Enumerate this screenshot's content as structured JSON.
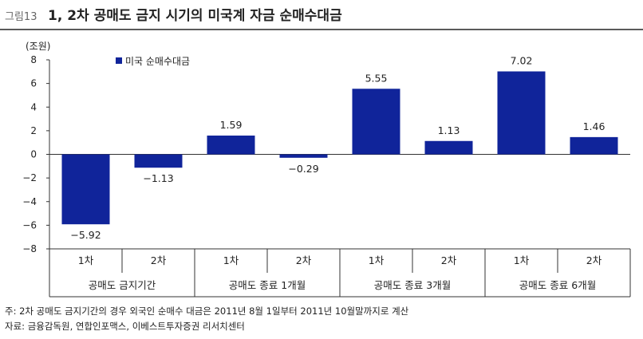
{
  "figure": {
    "number": "그림13",
    "title": "1, 2차 공매도 금지 시기의 미국계 자금 순매수대금"
  },
  "chart_data": {
    "type": "bar",
    "ylabel": "(조원)",
    "ylim": [
      -8,
      8
    ],
    "yticks": [
      8,
      6,
      4,
      2,
      0,
      -2,
      -4,
      -6,
      -8
    ],
    "ytick_labels": [
      "8",
      "6",
      "4",
      "2",
      "0",
      "−2",
      "−4",
      "−6",
      "−8"
    ],
    "legend": "미국 순매수대금",
    "legend_position": "top-left",
    "bar_color": "#10249a",
    "categories": [
      "1차",
      "2차",
      "1차",
      "2차",
      "1차",
      "2차",
      "1차",
      "2차"
    ],
    "values": [
      -5.92,
      -1.13,
      1.59,
      -0.29,
      5.55,
      1.13,
      7.02,
      1.46
    ],
    "value_labels": [
      "−5.92",
      "−1.13",
      "1.59",
      "−0.29",
      "5.55",
      "1.13",
      "7.02",
      "1.46"
    ],
    "groups": [
      "공매도 금지기간",
      "공매도 종료 1개월",
      "공매도 종료 3개월",
      "공매도 종료 6개월"
    ]
  },
  "notes": {
    "note": "주: 2차 공매도 금지기간의 경우 외국인 순매수 대금은 2011년 8월 1일부터 2011년 10월말까지로 계산",
    "source": "자료: 금융감독원, 연합인포맥스, 이베스트투자증권 리서치센터"
  }
}
